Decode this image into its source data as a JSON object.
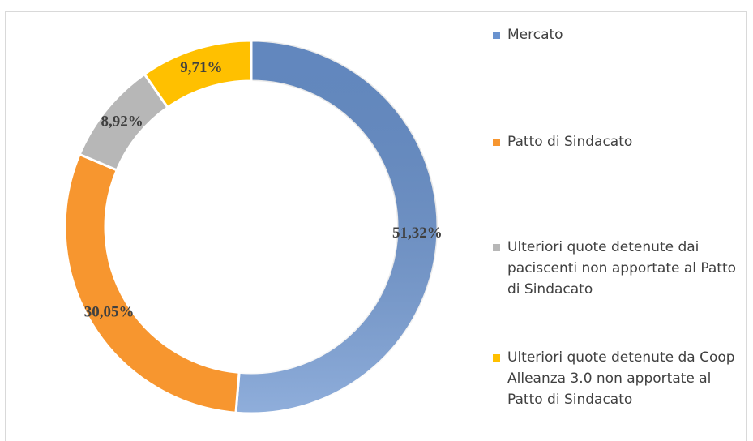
{
  "chart_data": {
    "type": "donut",
    "categories": [
      "Mercato",
      "Patto di Sindacato",
      "Ulteriori quote detenute dai paciscenti non apportate al Patto di Sindacato",
      "Ulteriori quote detenute da Coop Alleanza 3.0 non apportate al Patto di Sindacato"
    ],
    "values": [
      51.32,
      30.05,
      8.92,
      9.71
    ],
    "value_labels": [
      "51,32%",
      "30,05%",
      "8,92%",
      "9,71%"
    ],
    "colors": [
      "#6a93cf",
      "#f7962f",
      "#b7b7b7",
      "#ffc000"
    ],
    "legend": "right"
  }
}
